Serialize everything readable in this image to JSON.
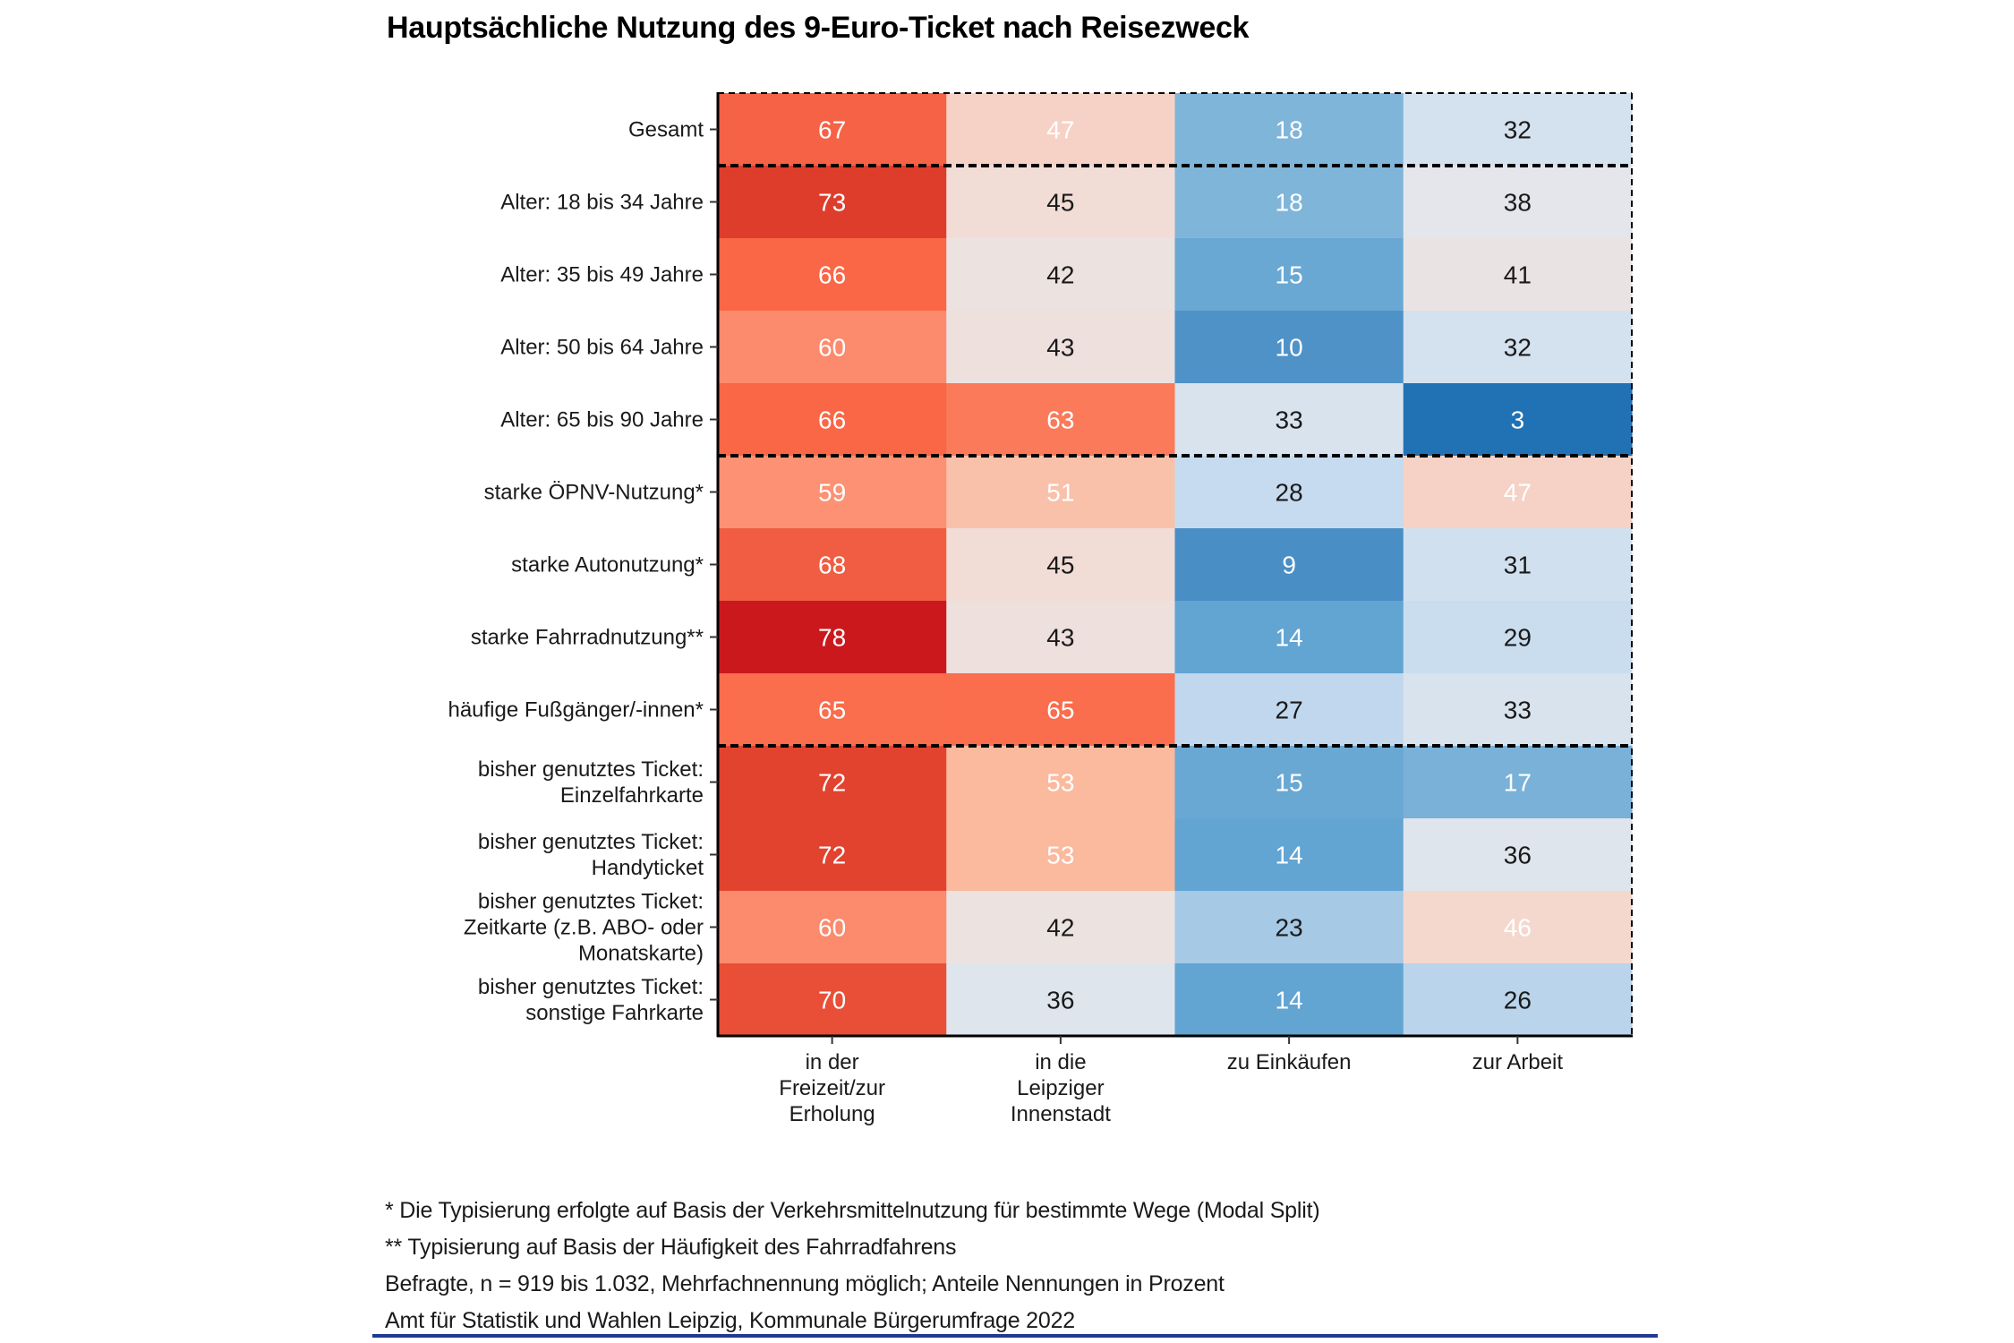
{
  "chart_data": {
    "type": "heatmap",
    "title": "Hauptsächliche Nutzung des 9-Euro-Ticket nach Reisezweck",
    "xlabel": "",
    "ylabel": "",
    "categories": [
      [
        "in der",
        "Freizeit/zur",
        "Erholung"
      ],
      [
        "in die",
        "Leipziger",
        "Innenstadt"
      ],
      [
        "zu Einkäufen"
      ],
      [
        "zur Arbeit"
      ]
    ],
    "rows": [
      {
        "label": [
          "Gesamt"
        ],
        "values": [
          67,
          47,
          18,
          32
        ]
      },
      {
        "label": [
          "Alter: 18 bis 34 Jahre"
        ],
        "values": [
          73,
          45,
          18,
          38
        ]
      },
      {
        "label": [
          "Alter: 35 bis 49 Jahre"
        ],
        "values": [
          66,
          42,
          15,
          41
        ]
      },
      {
        "label": [
          "Alter: 50 bis 64 Jahre"
        ],
        "values": [
          60,
          43,
          10,
          32
        ]
      },
      {
        "label": [
          "Alter: 65 bis 90 Jahre"
        ],
        "values": [
          66,
          63,
          33,
          3
        ]
      },
      {
        "label": [
          "starke ÖPNV-Nutzung*"
        ],
        "values": [
          59,
          51,
          28,
          47
        ]
      },
      {
        "label": [
          "starke Autonutzung*"
        ],
        "values": [
          68,
          45,
          9,
          31
        ]
      },
      {
        "label": [
          "starke Fahrradnutzung**"
        ],
        "values": [
          78,
          43,
          14,
          29
        ]
      },
      {
        "label": [
          "häufige Fußgänger/-innen*"
        ],
        "values": [
          65,
          65,
          27,
          33
        ]
      },
      {
        "label": [
          "bisher genutztes Ticket:",
          "Einzelfahrkarte"
        ],
        "values": [
          72,
          53,
          15,
          17
        ]
      },
      {
        "label": [
          "bisher genutztes Ticket:",
          "Handyticket"
        ],
        "values": [
          72,
          53,
          14,
          36
        ]
      },
      {
        "label": [
          "bisher genutztes Ticket:",
          "Zeitkarte (z.B. ABO- oder",
          "Monatskarte)"
        ],
        "values": [
          60,
          42,
          23,
          46
        ]
      },
      {
        "label": [
          "bisher genutztes Ticket:",
          "sonstige Fahrkarte"
        ],
        "values": [
          70,
          36,
          14,
          26
        ]
      }
    ],
    "group_separators_after_rows": [
      0,
      4,
      8
    ],
    "unit": "Prozent",
    "color_scale": {
      "low_color": "#2171b5",
      "mid_color": "#ece2e0",
      "high_color": "#cb181d",
      "range": [
        3,
        78
      ]
    },
    "grid": false,
    "legend": "none"
  },
  "footnotes": [
    "* Die Typisierung erfolgte auf Basis der Verkehrsmittelnutzung für bestimmte Wege (Modal Split)",
    "** Typisierung auf Basis der Häufigkeit des Fahrradfahrens",
    "Befragte, n = 919 bis 1.032, Mehrfachnennung möglich; Anteile Nennungen in Prozent",
    "Amt für Statistik und Wahlen Leipzig, Kommunale Bürgerumfrage 2022"
  ],
  "colors": {
    "rule": "#1f3a93"
  }
}
